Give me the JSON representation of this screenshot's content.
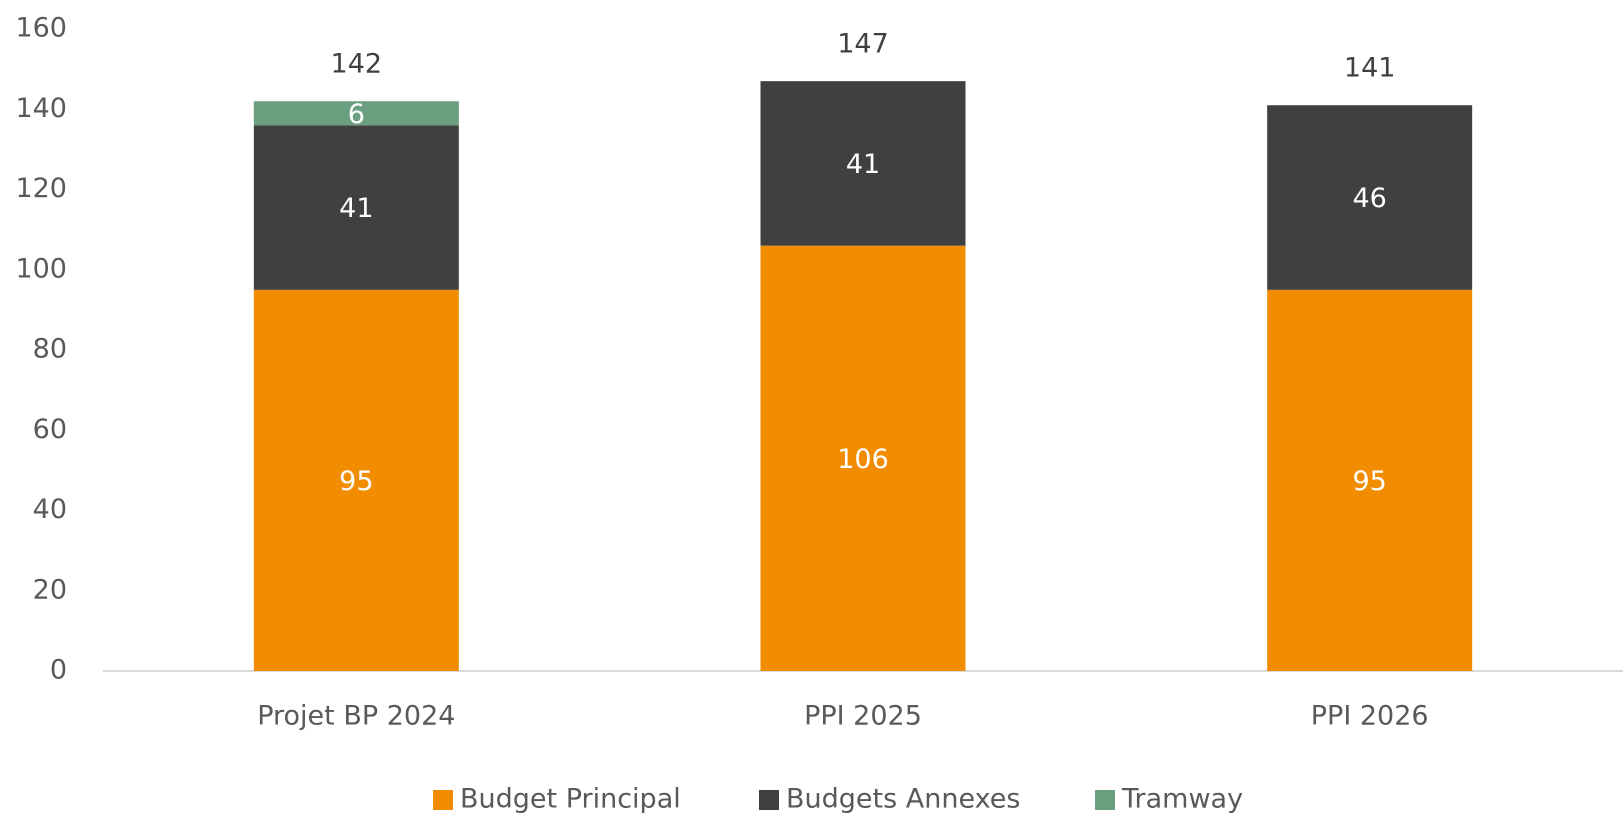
{
  "chart_data": {
    "type": "stacked_bar",
    "categories": [
      "Projet BP 2024",
      "PPI 2025",
      "PPI 2026"
    ],
    "series": [
      {
        "name": "Budget Principal",
        "color": "#f28c00",
        "values": [
          95,
          106,
          95
        ]
      },
      {
        "name": "Budgets Annexes",
        "color": "#404040",
        "values": [
          41,
          41,
          46
        ]
      },
      {
        "name": "Tramway",
        "color": "#6a9f7f",
        "values": [
          6,
          null,
          null
        ]
      }
    ],
    "totals": [
      142,
      147,
      141
    ],
    "ylim": [
      0,
      160
    ],
    "yticks": [
      0,
      20,
      40,
      60,
      80,
      100,
      120,
      140,
      160
    ],
    "grid": false,
    "legend": "bottom"
  }
}
